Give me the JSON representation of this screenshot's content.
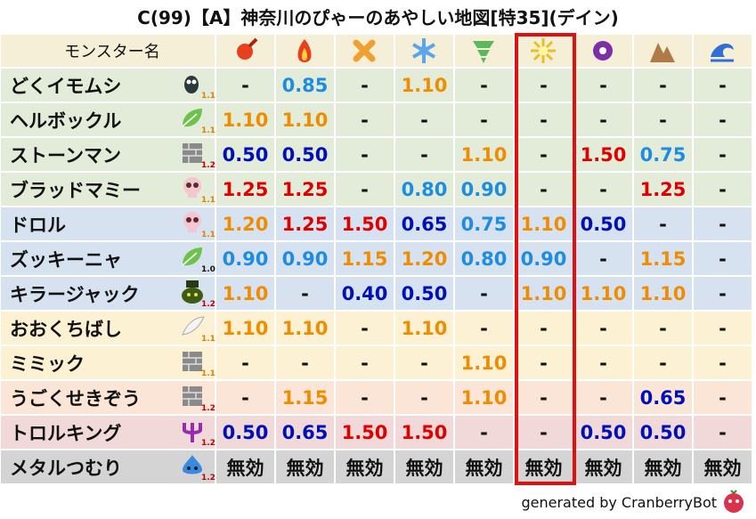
{
  "title": "C(99)【A】神奈川のぴゃーのあやしい地図[特35](デイン)",
  "table": {
    "name_header": "モンスター名",
    "rows": [
      {
        "name": "どくイモムシ",
        "rank": "1.1",
        "cells": [
          "-",
          "0.85",
          "-",
          "1.10",
          "-",
          "-",
          "-",
          "-",
          "-"
        ]
      },
      {
        "name": "ヘルボックル",
        "rank": "1.1",
        "cells": [
          "1.10",
          "1.10",
          "-",
          "-",
          "-",
          "-",
          "-",
          "-",
          "-"
        ]
      },
      {
        "name": "ストーンマン",
        "rank": "1.2",
        "cells": [
          "0.50",
          "0.50",
          "-",
          "-",
          "1.10",
          "-",
          "1.50",
          "0.75",
          "-"
        ]
      },
      {
        "name": "ブラッドマミー",
        "rank": "1.1",
        "cells": [
          "1.25",
          "1.25",
          "-",
          "0.80",
          "0.90",
          "-",
          "-",
          "1.25",
          "-"
        ]
      },
      {
        "name": "ドロル",
        "rank": "1.1",
        "cells": [
          "1.20",
          "1.25",
          "1.50",
          "0.65",
          "0.75",
          "1.10",
          "0.50",
          "-",
          "-"
        ]
      },
      {
        "name": "ズッキーニャ",
        "rank": "1.0",
        "cells": [
          "0.90",
          "0.90",
          "1.15",
          "1.20",
          "0.80",
          "0.90",
          "-",
          "1.15",
          "-"
        ]
      },
      {
        "name": "キラージャック",
        "rank": "1.2",
        "cells": [
          "1.10",
          "-",
          "0.40",
          "0.50",
          "-",
          "1.10",
          "1.10",
          "1.10",
          "-"
        ]
      },
      {
        "name": "おおくちばし",
        "rank": "1.1",
        "cells": [
          "1.10",
          "1.10",
          "-",
          "1.10",
          "-",
          "-",
          "-",
          "-",
          "-"
        ]
      },
      {
        "name": "ミミック",
        "rank": "1.1",
        "cells": [
          "-",
          "-",
          "-",
          "-",
          "1.10",
          "-",
          "-",
          "-",
          "-"
        ]
      },
      {
        "name": "うごくせきぞう",
        "rank": "1.2",
        "cells": [
          "-",
          "1.15",
          "-",
          "-",
          "1.10",
          "-",
          "-",
          "0.65",
          "-"
        ]
      },
      {
        "name": "トロルキング",
        "rank": "1.2",
        "cells": [
          "0.50",
          "0.65",
          "1.50",
          "1.50",
          "-",
          "-",
          "0.50",
          "0.50",
          "-"
        ]
      },
      {
        "name": "メタルつむり",
        "rank": "1.2",
        "cells": [
          "無効",
          "無効",
          "無効",
          "無効",
          "無効",
          "無効",
          "無効",
          "無効",
          "無効"
        ]
      }
    ]
  },
  "footer": "generated by CranberryBot"
}
